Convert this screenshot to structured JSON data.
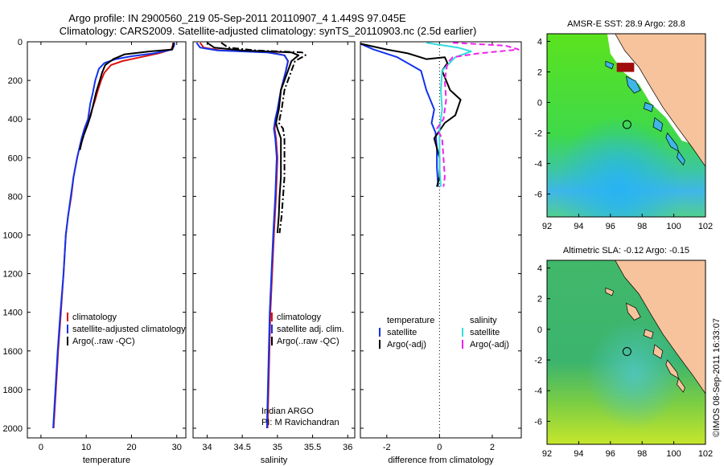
{
  "title": {
    "line1": "Argo profile: IN 2900560_219 05-Sep-2011 20110907_4 1.449S 97.045E",
    "line2": "Climatology: CARS2009. Satellite-adjusted climatology: synTS_20110903.nc (2.5d earlier)"
  },
  "copyright": "©IMOS 08-Sep-2011 16:33:07",
  "colors": {
    "climatology": "#dd1111",
    "satellite": "#1133ee",
    "argo": "#000000",
    "sat_salinity": "#33dddd",
    "argo_salinity": "#ee22ee",
    "map_land": "#f6c39c",
    "map_missing": "#ffffff"
  },
  "chart_data": [
    {
      "type": "line",
      "name": "temperature-profile",
      "xlabel": "temperature",
      "ylabel": "",
      "xlim": [
        -3,
        32
      ],
      "ylim": [
        2050,
        0
      ],
      "yreversed": true,
      "xticks": [
        0,
        10,
        20,
        30
      ],
      "yticks": [
        0,
        200,
        400,
        600,
        800,
        1000,
        1200,
        1400,
        1600,
        1800,
        2000
      ],
      "legend": {
        "position": "lower-left",
        "entries": [
          "climatology",
          "satellite-adjusted climatology",
          "Argo(..raw -QC)"
        ]
      },
      "series": [
        {
          "name": "climatology",
          "color_key": "climatology",
          "style": "solid",
          "points": [
            [
              29.2,
              5
            ],
            [
              29.1,
              20
            ],
            [
              28.8,
              40
            ],
            [
              26,
              60
            ],
            [
              22,
              80
            ],
            [
              18,
              100
            ],
            [
              15.5,
              120
            ],
            [
              14,
              160
            ],
            [
              13.3,
              200
            ],
            [
              12.6,
              250
            ],
            [
              12,
              300
            ],
            [
              11.3,
              350
            ],
            [
              10.6,
              400
            ],
            [
              9.7,
              450
            ],
            [
              9,
              500
            ],
            [
              8,
              600
            ],
            [
              7.2,
              700
            ],
            [
              6.7,
              800
            ],
            [
              6,
              900
            ],
            [
              5.5,
              1000
            ],
            [
              5,
              1200
            ],
            [
              4.4,
              1400
            ],
            [
              3.8,
              1600
            ],
            [
              3.3,
              1800
            ],
            [
              2.8,
              2000
            ]
          ]
        },
        {
          "name": "satellite-adjusted climatology",
          "color_key": "satellite",
          "style": "solid",
          "points": [
            [
              29.5,
              5
            ],
            [
              29.4,
              20
            ],
            [
              29,
              40
            ],
            [
              25,
              60
            ],
            [
              20,
              75
            ],
            [
              16.5,
              90
            ],
            [
              14,
              110
            ],
            [
              12.8,
              140
            ],
            [
              12,
              200
            ],
            [
              11.4,
              270
            ],
            [
              10.9,
              320
            ],
            [
              10.4,
              400
            ],
            [
              9.6,
              450
            ],
            [
              9,
              500
            ],
            [
              8,
              600
            ],
            [
              7.2,
              700
            ],
            [
              6.6,
              800
            ],
            [
              6,
              900
            ],
            [
              5.5,
              1000
            ],
            [
              5,
              1200
            ],
            [
              4.3,
              1400
            ],
            [
              3.7,
              1600
            ],
            [
              3.2,
              1800
            ],
            [
              2.7,
              2000
            ]
          ]
        },
        {
          "name": "Argo(..raw -QC)",
          "color_key": "argo",
          "style": "solid",
          "points": [
            [
              29.3,
              5
            ],
            [
              29.2,
              20
            ],
            [
              29,
              40
            ],
            [
              24,
              50
            ],
            [
              18.5,
              65
            ],
            [
              16,
              90
            ],
            [
              14.2,
              120
            ],
            [
              13.5,
              160
            ],
            [
              13,
              200
            ],
            [
              12.2,
              260
            ],
            [
              11.6,
              320
            ],
            [
              11,
              380
            ],
            [
              10.3,
              430
            ],
            [
              9.5,
              480
            ],
            [
              9,
              520
            ],
            [
              8.6,
              560
            ]
          ]
        }
      ]
    },
    {
      "type": "line",
      "name": "salinity-profile",
      "xlabel": "salinity",
      "ylabel": "",
      "xlim": [
        33.8,
        36.1
      ],
      "ylim": [
        2050,
        0
      ],
      "yreversed": true,
      "xticks": [
        34,
        34.5,
        35,
        35.5,
        36
      ],
      "yticks": [
        0,
        200,
        400,
        600,
        800,
        1000,
        1200,
        1400,
        1600,
        1800,
        2000
      ],
      "legend": {
        "position": "lower-right",
        "entries": [
          "climatology",
          "satellite adj. clim.",
          "Argo(..raw -QC)"
        ]
      },
      "annotation": [
        "Indian ARGO",
        "PI: M Ravichandran"
      ],
      "series": [
        {
          "name": "climatology",
          "color_key": "climatology",
          "style": "solid",
          "points": [
            [
              33.9,
              5
            ],
            [
              33.95,
              30
            ],
            [
              34.2,
              45
            ],
            [
              34.9,
              55
            ],
            [
              35.1,
              70
            ],
            [
              35.15,
              100
            ],
            [
              35.12,
              150
            ],
            [
              35.05,
              250
            ],
            [
              35.02,
              350
            ],
            [
              34.98,
              400
            ],
            [
              34.96,
              450
            ],
            [
              34.98,
              500
            ],
            [
              35.0,
              600
            ],
            [
              34.98,
              800
            ],
            [
              34.95,
              1000
            ],
            [
              34.9,
              1400
            ],
            [
              34.86,
              2000
            ]
          ]
        },
        {
          "name": "satellite adj. clim.",
          "color_key": "satellite",
          "style": "solid",
          "points": [
            [
              33.85,
              5
            ],
            [
              33.9,
              30
            ],
            [
              34.15,
              45
            ],
            [
              34.85,
              55
            ],
            [
              35.1,
              70
            ],
            [
              35.15,
              100
            ],
            [
              35.12,
              150
            ],
            [
              35.05,
              250
            ],
            [
              35.0,
              350
            ],
            [
              34.97,
              400
            ],
            [
              34.95,
              450
            ],
            [
              34.97,
              500
            ],
            [
              34.99,
              600
            ],
            [
              34.97,
              800
            ],
            [
              34.94,
              1000
            ],
            [
              34.89,
              1400
            ],
            [
              34.85,
              2000
            ]
          ]
        },
        {
          "name": "Argo(..raw -QC)",
          "color_key": "argo",
          "style": "solid",
          "points": [
            [
              34.0,
              5
            ],
            [
              34.1,
              30
            ],
            [
              34.5,
              45
            ],
            [
              35.2,
              55
            ],
            [
              35.3,
              70
            ],
            [
              35.2,
              100
            ],
            [
              35.15,
              150
            ],
            [
              35.05,
              250
            ],
            [
              35.02,
              350
            ],
            [
              34.98,
              420
            ],
            [
              35.0,
              450
            ],
            [
              35.05,
              500
            ],
            [
              35.05,
              600
            ],
            [
              35.05,
              700
            ],
            [
              35.03,
              800
            ],
            [
              35.02,
              900
            ],
            [
              35.0,
              990
            ]
          ]
        },
        {
          "name": "Argo(-adj)",
          "color_key": "argo",
          "style": "dashdot",
          "points": [
            [
              34.2,
              5
            ],
            [
              34.3,
              30
            ],
            [
              34.7,
              45
            ],
            [
              35.35,
              55
            ],
            [
              35.4,
              70
            ],
            [
              35.25,
              100
            ],
            [
              35.2,
              150
            ],
            [
              35.1,
              250
            ],
            [
              35.06,
              350
            ],
            [
              35.02,
              420
            ],
            [
              35.08,
              450
            ],
            [
              35.1,
              500
            ],
            [
              35.1,
              600
            ],
            [
              35.1,
              700
            ],
            [
              35.08,
              800
            ],
            [
              35.06,
              900
            ],
            [
              35.03,
              990
            ]
          ]
        }
      ]
    },
    {
      "type": "line",
      "name": "difference-profile",
      "xlabel": "difference from climatology",
      "ylabel": "",
      "xlim": [
        -3,
        3.1
      ],
      "ylim": [
        2050,
        0
      ],
      "yreversed": true,
      "xticks": [
        -2,
        0,
        2
      ],
      "yticks": [
        0,
        200,
        400,
        600,
        800,
        1000,
        1200,
        1400,
        1600,
        1800,
        2000
      ],
      "zero_line": "dotted",
      "legend": {
        "position": "lower",
        "groups": [
          {
            "heading": "temperature",
            "entries": [
              "satellite",
              "Argo(-adj)"
            ]
          },
          {
            "heading": "salinity",
            "entries": [
              "satellite",
              "Argo(-adj)"
            ]
          }
        ]
      },
      "series": [
        {
          "name": "temperature satellite",
          "color_key": "satellite",
          "style": "solid",
          "points": [
            [
              -3,
              10
            ],
            [
              -2.5,
              40
            ],
            [
              -1.6,
              80
            ],
            [
              -0.7,
              150
            ],
            [
              -0.5,
              250
            ],
            [
              -0.2,
              350
            ],
            [
              -0.3,
              420
            ],
            [
              -0.15,
              470
            ],
            [
              -0.1,
              550
            ],
            [
              -0.1,
              650
            ],
            [
              -0.05,
              750
            ]
          ]
        },
        {
          "name": "temperature Argo(-adj)",
          "color_key": "argo",
          "style": "solid",
          "points": [
            [
              -3,
              10
            ],
            [
              -2,
              40
            ],
            [
              -1.2,
              60
            ],
            [
              -0.5,
              90
            ],
            [
              0.2,
              80
            ],
            [
              0.3,
              110
            ],
            [
              0.1,
              150
            ],
            [
              0.4,
              250
            ],
            [
              0.8,
              300
            ],
            [
              0.6,
              380
            ],
            [
              0.2,
              420
            ],
            [
              0,
              460
            ],
            [
              -0.2,
              500
            ],
            [
              -0.1,
              550
            ],
            [
              0,
              600
            ],
            [
              0,
              700
            ],
            [
              -0.1,
              750
            ]
          ]
        },
        {
          "name": "salinity satellite",
          "color_key": "sat_salinity",
          "style": "solid",
          "points": [
            [
              -0.5,
              5
            ],
            [
              0.7,
              30
            ],
            [
              1.2,
              50
            ],
            [
              0.6,
              80
            ],
            [
              0.1,
              150
            ],
            [
              0.05,
              250
            ],
            [
              0.1,
              350
            ],
            [
              0,
              450
            ],
            [
              0,
              550
            ],
            [
              0,
              650
            ],
            [
              0.05,
              750
            ]
          ]
        },
        {
          "name": "salinity Argo(-adj)",
          "color_key": "argo_salinity",
          "style": "dashed",
          "points": [
            [
              0.5,
              5
            ],
            [
              2.5,
              20
            ],
            [
              3,
              40
            ],
            [
              1.5,
              60
            ],
            [
              0.5,
              80
            ],
            [
              0.3,
              110
            ],
            [
              0.2,
              200
            ],
            [
              0.25,
              300
            ],
            [
              0.15,
              400
            ],
            [
              -0.1,
              450
            ],
            [
              0.1,
              500
            ],
            [
              0.15,
              600
            ],
            [
              0.2,
              700
            ],
            [
              0.15,
              750
            ]
          ]
        }
      ]
    },
    {
      "type": "heatmap",
      "name": "amsre-sst-map",
      "title": "AMSR-E SST: 28.9 Argo: 28.8",
      "xlim": [
        92,
        102
      ],
      "ylim": [
        -7.5,
        4.5
      ],
      "xticks": [
        92,
        94,
        96,
        98,
        100,
        102
      ],
      "yticks": [
        4,
        2,
        0,
        -2,
        -4,
        -6
      ],
      "argo_position": [
        97.045,
        -1.449
      ]
    },
    {
      "type": "heatmap",
      "name": "altimetric-sla-map",
      "title": "Altimetric SLA: -0.12 Argo: -0.15",
      "xlim": [
        92,
        102
      ],
      "ylim": [
        -7.5,
        4.5
      ],
      "xticks": [
        92,
        94,
        96,
        98,
        100,
        102
      ],
      "yticks": [
        4,
        2,
        0,
        -2,
        -4,
        -6
      ],
      "argo_position": [
        97.045,
        -1.449
      ]
    }
  ]
}
